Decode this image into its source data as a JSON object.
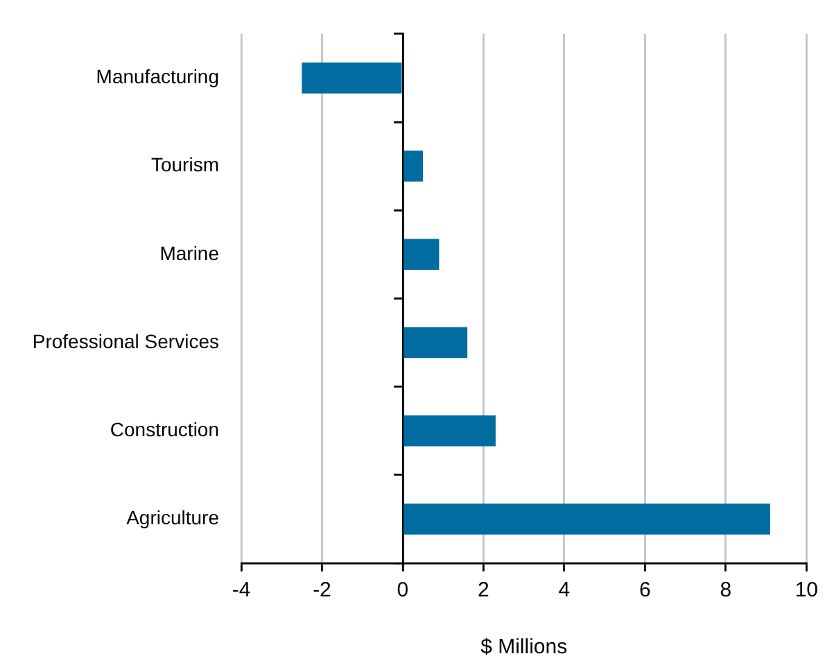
{
  "chart_data": {
    "type": "bar",
    "orientation": "horizontal",
    "categories": [
      "Manufacturing",
      "Tourism",
      "Marine",
      "Professional Services",
      "Construction",
      "Agriculture"
    ],
    "values": [
      -2.5,
      0.5,
      0.9,
      1.6,
      2.3,
      9.1
    ],
    "color": "#006ca0",
    "xlabel": "$ Millions",
    "xlim": [
      -4,
      10
    ],
    "xticks": [
      -4,
      -2,
      0,
      2,
      4,
      6,
      8,
      10
    ],
    "grid": "x"
  }
}
